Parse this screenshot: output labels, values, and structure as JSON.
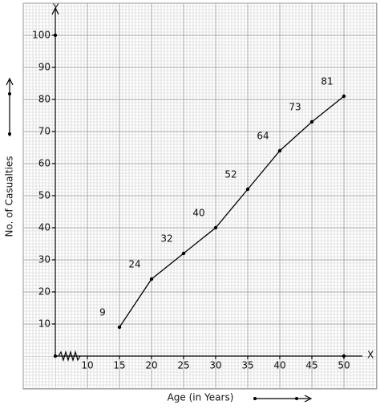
{
  "chart_data": {
    "type": "line",
    "x_label": "Age (in Years)",
    "y_label": "No. of Casualties",
    "x_axis_letter": "X",
    "y_axis_letter": "Y",
    "x": [
      15,
      20,
      25,
      30,
      35,
      40,
      45,
      50
    ],
    "values": [
      9,
      24,
      32,
      40,
      52,
      64,
      73,
      81
    ],
    "color": "#000000",
    "xlim": [
      5,
      53
    ],
    "xticks": [
      10,
      15,
      20,
      25,
      30,
      35,
      40,
      45,
      50
    ],
    "ylim": [
      0,
      108
    ],
    "yticks": [
      10,
      20,
      30,
      40,
      50,
      60,
      70,
      80,
      90,
      100
    ],
    "grid": true
  }
}
